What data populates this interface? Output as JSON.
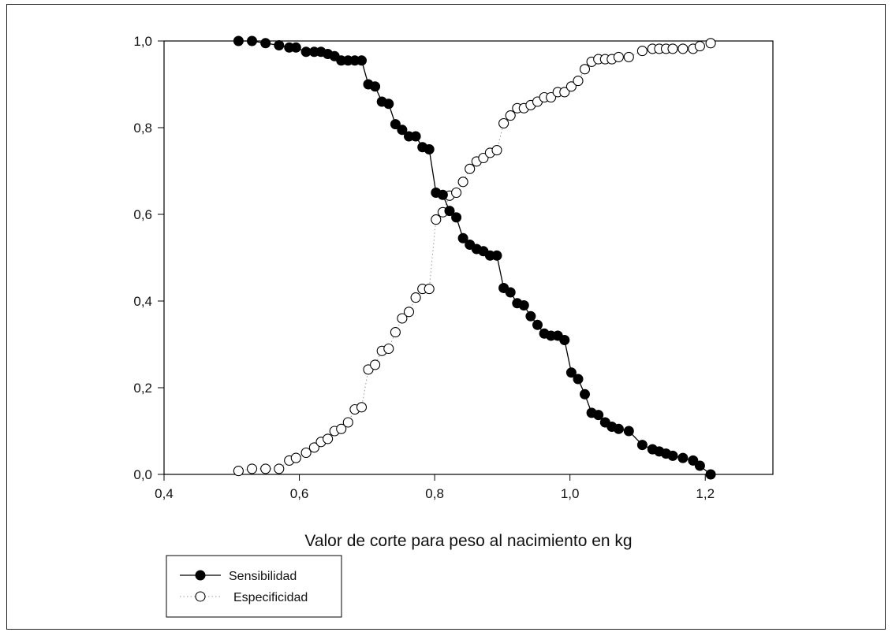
{
  "chart_data": {
    "type": "line",
    "title": "",
    "xlabel": "Valor de corte para peso al nacimiento en kg",
    "ylabel": "",
    "xlim": [
      0.4,
      1.3
    ],
    "ylim": [
      0.0,
      1.0
    ],
    "xticks": [
      0.4,
      0.6,
      0.8,
      1.0,
      1.2
    ],
    "yticks": [
      0.0,
      0.2,
      0.4,
      0.6,
      0.8,
      1.0
    ],
    "xtick_labels": [
      "0,4",
      "0,6",
      "0,8",
      "1,0",
      "1,2"
    ],
    "ytick_labels": [
      "0,0",
      "0,2",
      "0,4",
      "0,6",
      "0,8",
      "1,0"
    ],
    "grid": false,
    "legend_position": "bottom-left",
    "series": [
      {
        "name": "Sensibilidad",
        "marker": "filled-circle",
        "line": "solid",
        "color": "#000000",
        "x": [
          0.51,
          0.53,
          0.55,
          0.57,
          0.585,
          0.595,
          0.61,
          0.622,
          0.632,
          0.642,
          0.652,
          0.662,
          0.672,
          0.682,
          0.692,
          0.702,
          0.712,
          0.722,
          0.732,
          0.742,
          0.752,
          0.762,
          0.772,
          0.782,
          0.792,
          0.802,
          0.812,
          0.822,
          0.832,
          0.842,
          0.852,
          0.862,
          0.872,
          0.882,
          0.892,
          0.902,
          0.912,
          0.922,
          0.932,
          0.942,
          0.952,
          0.962,
          0.972,
          0.982,
          0.992,
          1.002,
          1.012,
          1.022,
          1.032,
          1.042,
          1.052,
          1.062,
          1.072,
          1.087,
          1.107,
          1.122,
          1.132,
          1.142,
          1.152,
          1.167,
          1.182,
          1.192,
          1.208
        ],
        "y": [
          1.0,
          1.0,
          0.995,
          0.99,
          0.985,
          0.985,
          0.975,
          0.975,
          0.975,
          0.97,
          0.965,
          0.955,
          0.955,
          0.955,
          0.955,
          0.9,
          0.895,
          0.86,
          0.855,
          0.808,
          0.795,
          0.78,
          0.78,
          0.755,
          0.75,
          0.65,
          0.645,
          0.608,
          0.593,
          0.545,
          0.53,
          0.52,
          0.515,
          0.505,
          0.505,
          0.43,
          0.42,
          0.395,
          0.39,
          0.365,
          0.345,
          0.325,
          0.32,
          0.32,
          0.31,
          0.235,
          0.22,
          0.185,
          0.142,
          0.137,
          0.12,
          0.11,
          0.105,
          0.1,
          0.068,
          0.058,
          0.053,
          0.048,
          0.043,
          0.038,
          0.032,
          0.02,
          0.0
        ]
      },
      {
        "name": "Especificidad",
        "marker": "open-circle",
        "line": "dotted",
        "color": "#000000",
        "x": [
          0.51,
          0.53,
          0.55,
          0.57,
          0.585,
          0.595,
          0.61,
          0.622,
          0.632,
          0.642,
          0.652,
          0.662,
          0.672,
          0.682,
          0.692,
          0.702,
          0.712,
          0.722,
          0.732,
          0.742,
          0.752,
          0.762,
          0.772,
          0.782,
          0.792,
          0.802,
          0.812,
          0.822,
          0.832,
          0.842,
          0.852,
          0.862,
          0.872,
          0.882,
          0.892,
          0.902,
          0.912,
          0.922,
          0.932,
          0.942,
          0.952,
          0.962,
          0.972,
          0.982,
          0.992,
          1.002,
          1.012,
          1.022,
          1.032,
          1.042,
          1.052,
          1.062,
          1.072,
          1.087,
          1.107,
          1.122,
          1.132,
          1.142,
          1.152,
          1.167,
          1.182,
          1.192,
          1.208
        ],
        "y": [
          0.008,
          0.013,
          0.013,
          0.013,
          0.032,
          0.038,
          0.05,
          0.062,
          0.075,
          0.082,
          0.1,
          0.105,
          0.12,
          0.15,
          0.155,
          0.242,
          0.253,
          0.285,
          0.29,
          0.328,
          0.36,
          0.375,
          0.408,
          0.428,
          0.428,
          0.588,
          0.605,
          0.643,
          0.65,
          0.675,
          0.705,
          0.722,
          0.73,
          0.742,
          0.748,
          0.81,
          0.828,
          0.845,
          0.845,
          0.852,
          0.86,
          0.87,
          0.87,
          0.882,
          0.882,
          0.895,
          0.908,
          0.935,
          0.952,
          0.958,
          0.958,
          0.958,
          0.963,
          0.963,
          0.977,
          0.982,
          0.982,
          0.982,
          0.982,
          0.982,
          0.982,
          0.988,
          0.995
        ]
      }
    ]
  }
}
